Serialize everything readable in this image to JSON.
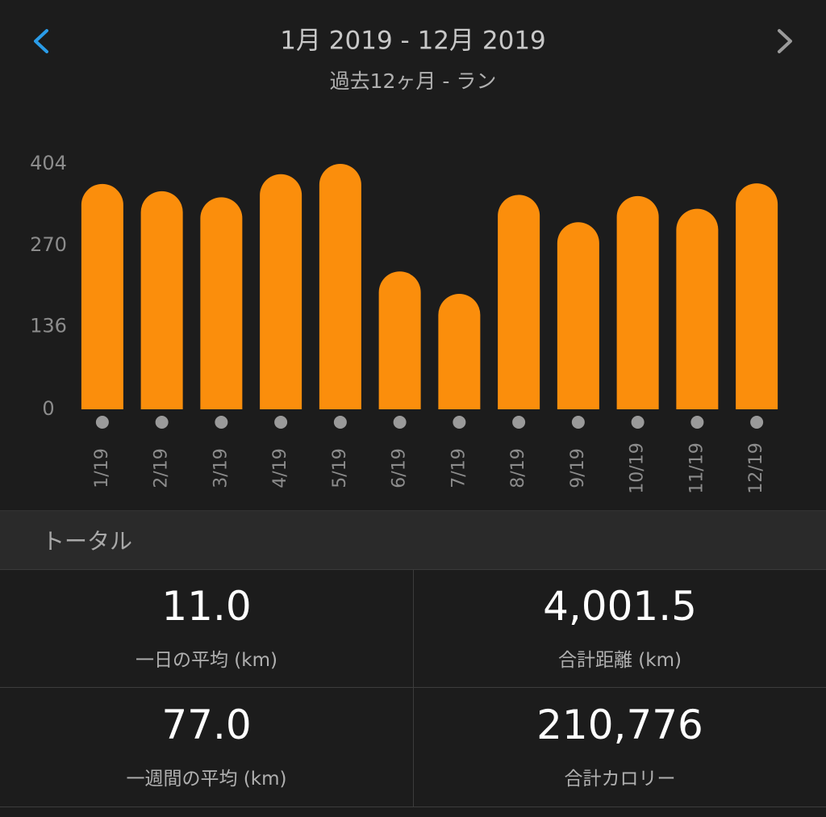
{
  "header": {
    "title": "1月 2019 - 12月 2019",
    "subtitle": "過去12ヶ月 - ラン"
  },
  "chart_data": {
    "type": "bar",
    "categories": [
      "1/19",
      "2/19",
      "3/19",
      "4/19",
      "5/19",
      "6/19",
      "7/19",
      "8/19",
      "9/19",
      "10/19",
      "11/19",
      "12/19"
    ],
    "values": [
      371,
      359,
      349,
      387,
      404,
      227,
      190,
      353,
      308,
      351,
      330,
      372
    ],
    "color": "#fb8e0c",
    "ylim": [
      0,
      404
    ],
    "yticks": [
      0,
      136,
      270,
      404
    ]
  },
  "section_title": "トータル",
  "stats": [
    {
      "value": "11.0",
      "label": "一日の平均 (km)"
    },
    {
      "value": "4,001.5",
      "label": "合計距離 (km)"
    },
    {
      "value": "77.0",
      "label": "一週間の平均 (km)"
    },
    {
      "value": "210,776",
      "label": "合計カロリー"
    }
  ]
}
